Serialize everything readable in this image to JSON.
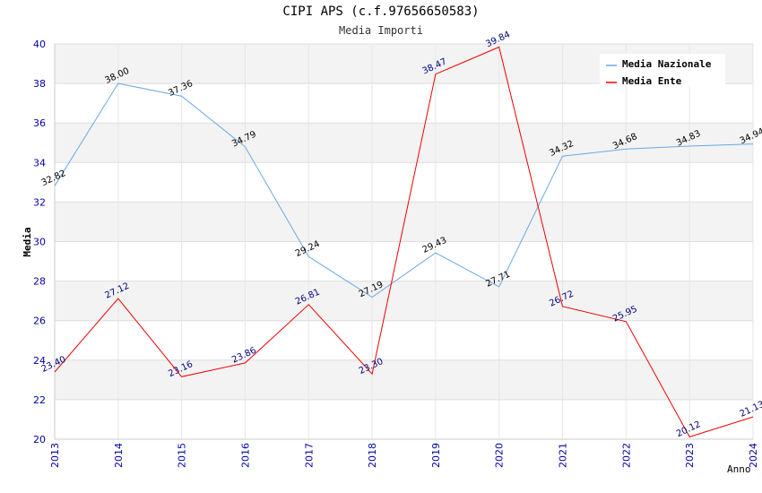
{
  "chart_data": {
    "type": "line",
    "title": "CIPI APS (c.f.97656650583)",
    "subtitle": "Media Importi",
    "xlabel": "Anno",
    "ylabel": "Media",
    "ylim": [
      20,
      40
    ],
    "y_ticks": [
      "20",
      "22",
      "24",
      "26",
      "28",
      "30",
      "32",
      "34",
      "36",
      "38",
      "40"
    ],
    "categories": [
      "2013",
      "2014",
      "2015",
      "2016",
      "2017",
      "2018",
      "2019",
      "2020",
      "2021",
      "2022",
      "2023",
      "2024"
    ],
    "legend_position": "top-right",
    "series": [
      {
        "name": "Media Nazionale",
        "color": "#6aa8e6",
        "values": [
          32.82,
          38.0,
          37.36,
          34.79,
          29.24,
          27.19,
          29.43,
          27.71,
          34.32,
          34.68,
          34.83,
          34.94
        ],
        "labels": [
          "32.82",
          "38.00",
          "37.36",
          "34.79",
          "29.24",
          "27.19",
          "29.43",
          "27.71",
          "34.32",
          "34.68",
          "34.83",
          "34.94"
        ]
      },
      {
        "name": "Media Ente",
        "color": "#ee0000",
        "values": [
          23.4,
          27.12,
          23.16,
          23.86,
          26.81,
          23.3,
          38.47,
          39.84,
          26.72,
          25.95,
          20.12,
          21.13
        ],
        "labels": [
          "23.40",
          "27.12",
          "23.16",
          "23.86",
          "26.81",
          "23.30",
          "38.47",
          "39.84",
          "26.72",
          "25.95",
          "20.12",
          "21.13"
        ]
      }
    ]
  }
}
